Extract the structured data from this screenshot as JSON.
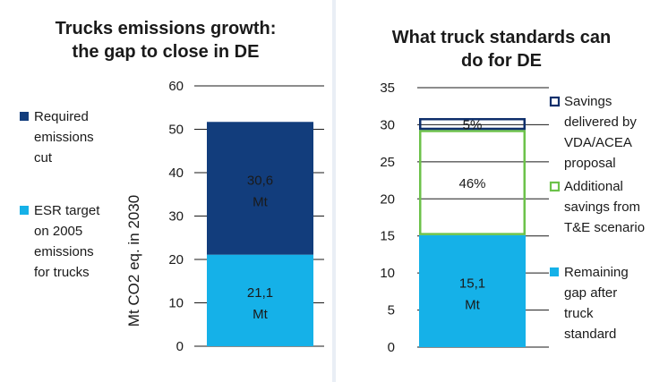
{
  "colors": {
    "dark_blue": "#123d7c",
    "light_blue": "#15b1e8",
    "green": "#6cc24a",
    "navy_outline": "#0f2f6b"
  },
  "chart_data": [
    {
      "type": "bar",
      "stacked": true,
      "title_lines": [
        "Trucks emissions growth:",
        "the gap to close in DE"
      ],
      "ylabel": "Mt CO2 eq. in 2030",
      "ylim": [
        0,
        60
      ],
      "yticks": [
        0,
        10,
        20,
        30,
        40,
        50,
        60
      ],
      "grid": true,
      "legend_position": "left",
      "series": [
        {
          "name_lines": [
            "ESR target",
            "on 2005",
            "emissions",
            "for trucks"
          ],
          "value": 21.1,
          "label_lines": [
            "21,1",
            "Mt"
          ],
          "color": "#15b1e8",
          "style": "filled"
        },
        {
          "name_lines": [
            "Required",
            "emissions",
            "cut"
          ],
          "value": 30.6,
          "label_lines": [
            "30,6",
            "Mt"
          ],
          "color": "#123d7c",
          "style": "filled"
        }
      ]
    },
    {
      "type": "bar",
      "stacked": true,
      "title_lines": [
        "What truck standards can",
        "do for DE"
      ],
      "ylabel": "",
      "ylim": [
        0,
        35
      ],
      "yticks": [
        0,
        5,
        10,
        15,
        20,
        25,
        30,
        35
      ],
      "grid": true,
      "legend_position": "right",
      "series": [
        {
          "name_lines": [
            "Remaining",
            "gap after",
            "truck",
            "standard"
          ],
          "value": 15.1,
          "label_lines": [
            "15,1",
            "Mt"
          ],
          "color": "#15b1e8",
          "style": "filled"
        },
        {
          "name_lines": [
            "Additional",
            "savings from",
            "T&E scenario"
          ],
          "value": 14.2,
          "label_lines": [
            "46%"
          ],
          "color": "#6cc24a",
          "style": "outline"
        },
        {
          "name_lines": [
            "Savings",
            "delivered by",
            "VDA/ACEA",
            "proposal"
          ],
          "value": 1.6,
          "label_lines": [
            "5%"
          ],
          "color": "#0f2f6b",
          "style": "outline"
        }
      ]
    }
  ]
}
